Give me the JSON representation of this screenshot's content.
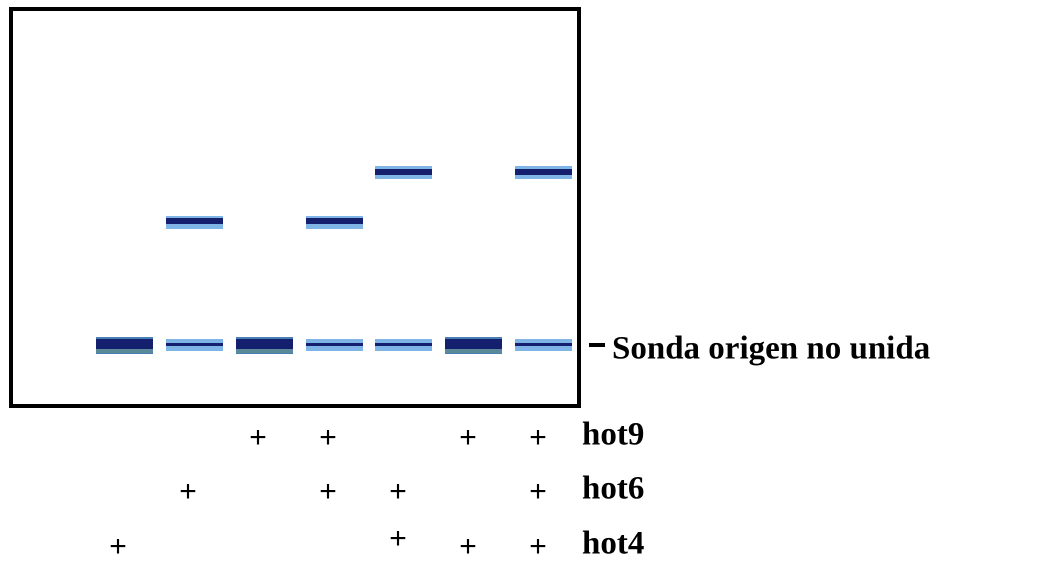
{
  "probe_label": "Sonda origen no unida",
  "rows": [
    {
      "label": "hot9",
      "lanes": [
        null,
        null,
        "+",
        "+",
        null,
        "+",
        "+"
      ]
    },
    {
      "label": "hot6",
      "lanes": [
        null,
        "+",
        null,
        "+",
        "+",
        null,
        "+"
      ]
    },
    {
      "label": "hot4",
      "lanes": [
        "+",
        null,
        null,
        null,
        "+",
        "+",
        "+"
      ]
    }
  ]
}
